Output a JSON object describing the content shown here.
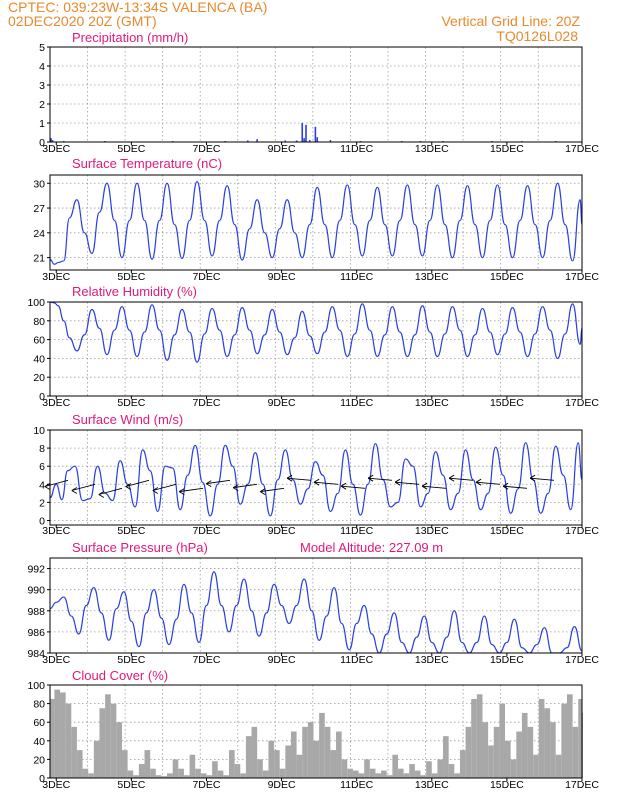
{
  "header": {
    "line1_left": "CPTEC:   039:23W-13:34S   VALENCA (BA)",
    "line2_left": "02DEC2020 20Z (GMT)",
    "line1_right": "Vertical Grid Line: 20Z",
    "line2_right": "TQ0126L028"
  },
  "x_axis": {
    "tick_labels": [
      "3DEC",
      "5DEC",
      "7DEC",
      "9DEC",
      "11DEC",
      "13DEC",
      "15DEC",
      "17DEC"
    ],
    "tick_days": [
      3,
      5,
      7,
      9,
      11,
      13,
      15,
      17
    ],
    "start_day": 2.833,
    "end_day": 17.0
  },
  "colors": {
    "series": "#2a3fe0",
    "cloud": "#a8a8a8",
    "title": "#e0197c",
    "header": "#e8892b"
  },
  "model_altitude": "Model Altitude: 227.09  m",
  "chart_data": [
    {
      "id": "precip",
      "type": "bar",
      "title": "Precipitation (mm/h)",
      "ylim": [
        0,
        5
      ],
      "yticks": [
        0,
        1,
        2,
        3,
        4,
        5
      ],
      "grid": true,
      "x": [
        2.86,
        2.9,
        3.2,
        4.3,
        6.1,
        7.5,
        8.1,
        8.35,
        9.1,
        9.4,
        9.55,
        9.6,
        9.65,
        9.75,
        9.9,
        9.95,
        10.3,
        11.1,
        12.2,
        12.7,
        13.3,
        14.6,
        15.4,
        16.3
      ],
      "values": [
        0.2,
        0.1,
        0.05,
        0.05,
        0.05,
        0.05,
        0.08,
        0.15,
        0.08,
        0.08,
        1.0,
        0.2,
        0.9,
        0.1,
        0.8,
        0.25,
        0.1,
        0.05,
        0.05,
        0.05,
        0.05,
        0.05,
        0.05,
        0.05
      ]
    },
    {
      "id": "temp",
      "type": "line",
      "title": "Surface Temperature (nC)",
      "ylim": [
        19.5,
        31
      ],
      "yticks": [
        21,
        24,
        27,
        30
      ],
      "grid": true,
      "x": [
        2.83,
        2.95,
        3.05,
        3.2,
        3.35,
        3.55,
        3.75,
        3.95,
        4.15,
        4.35,
        4.55,
        4.75,
        4.95,
        5.15,
        5.35,
        5.55,
        5.75,
        5.95,
        6.15,
        6.35,
        6.55,
        6.75,
        6.95,
        7.15,
        7.35,
        7.55,
        7.75,
        7.95,
        8.15,
        8.35,
        8.55,
        8.75,
        8.95,
        9.15,
        9.35,
        9.55,
        9.75,
        9.95,
        10.15,
        10.35,
        10.55,
        10.75,
        10.95,
        11.15,
        11.35,
        11.55,
        11.75,
        11.95,
        12.15,
        12.35,
        12.55,
        12.75,
        12.95,
        13.15,
        13.35,
        13.55,
        13.75,
        13.95,
        14.15,
        14.35,
        14.55,
        14.75,
        14.95,
        15.15,
        15.35,
        15.55,
        15.75,
        15.95,
        16.15,
        16.35,
        16.55,
        16.75,
        16.95,
        17.0
      ],
      "values": [
        20.8,
        20.2,
        20.4,
        20.6,
        25.8,
        28.0,
        24.0,
        21.5,
        26.5,
        30.0,
        25.5,
        21.0,
        25.5,
        30.0,
        25.5,
        20.8,
        25.5,
        30.0,
        25.0,
        20.9,
        25.5,
        30.2,
        25.5,
        21.2,
        25.5,
        29.7,
        25.0,
        20.7,
        24.5,
        28.0,
        24.0,
        21.0,
        24.5,
        28.0,
        24.0,
        21.0,
        25.0,
        29.5,
        25.0,
        21.0,
        25.5,
        29.8,
        25.0,
        21.2,
        25.5,
        29.5,
        25.0,
        21.2,
        25.5,
        29.8,
        25.0,
        21.2,
        25.5,
        29.8,
        25.0,
        21.0,
        25.5,
        29.7,
        25.0,
        21.0,
        25.5,
        29.8,
        25.0,
        21.0,
        25.5,
        29.7,
        25.0,
        21.0,
        25.5,
        30.0,
        25.0,
        20.6,
        28.0,
        25.0
      ]
    },
    {
      "id": "rh",
      "type": "line",
      "title": "Relative Humidity (%)",
      "ylim": [
        0,
        100
      ],
      "yticks": [
        0,
        20,
        40,
        60,
        80,
        100
      ],
      "grid": true,
      "x": [
        2.83,
        2.95,
        3.05,
        3.2,
        3.35,
        3.55,
        3.75,
        3.95,
        4.15,
        4.35,
        4.55,
        4.75,
        4.95,
        5.15,
        5.35,
        5.55,
        5.75,
        5.95,
        6.15,
        6.35,
        6.55,
        6.75,
        6.95,
        7.15,
        7.35,
        7.55,
        7.75,
        7.95,
        8.15,
        8.35,
        8.55,
        8.75,
        8.95,
        9.15,
        9.35,
        9.55,
        9.75,
        9.95,
        10.15,
        10.35,
        10.55,
        10.75,
        10.95,
        11.15,
        11.35,
        11.55,
        11.75,
        11.95,
        12.15,
        12.35,
        12.55,
        12.75,
        12.95,
        13.15,
        13.35,
        13.55,
        13.75,
        13.95,
        14.15,
        14.35,
        14.55,
        14.75,
        14.95,
        15.15,
        15.35,
        15.55,
        15.75,
        15.95,
        16.15,
        16.35,
        16.55,
        16.75,
        16.95,
        17.0
      ],
      "values": [
        100,
        99,
        96,
        80,
        62,
        48,
        65,
        92,
        72,
        44,
        70,
        95,
        70,
        42,
        68,
        97,
        70,
        38,
        65,
        92,
        68,
        36,
        66,
        93,
        70,
        42,
        65,
        94,
        70,
        45,
        65,
        92,
        68,
        44,
        62,
        90,
        64,
        45,
        68,
        95,
        70,
        42,
        66,
        98,
        70,
        42,
        65,
        95,
        68,
        42,
        65,
        96,
        68,
        42,
        66,
        95,
        70,
        42,
        65,
        93,
        68,
        44,
        66,
        94,
        68,
        42,
        66,
        95,
        70,
        40,
        66,
        98,
        55,
        72
      ]
    },
    {
      "id": "wind",
      "type": "line",
      "title": "Surface Wind (m/s)",
      "ylim": [
        -0.5,
        10
      ],
      "yticks": [
        0,
        2,
        4,
        6,
        8,
        10
      ],
      "grid": true,
      "x": [
        2.83,
        3.0,
        3.15,
        3.3,
        3.5,
        3.7,
        3.9,
        4.1,
        4.3,
        4.5,
        4.7,
        4.9,
        5.1,
        5.3,
        5.5,
        5.7,
        5.9,
        6.1,
        6.3,
        6.5,
        6.7,
        6.9,
        7.1,
        7.3,
        7.5,
        7.7,
        7.9,
        8.1,
        8.3,
        8.5,
        8.7,
        8.9,
        9.1,
        9.3,
        9.5,
        9.7,
        9.9,
        10.1,
        10.3,
        10.5,
        10.7,
        10.9,
        11.1,
        11.3,
        11.5,
        11.7,
        11.9,
        12.1,
        12.3,
        12.5,
        12.7,
        12.9,
        13.1,
        13.3,
        13.5,
        13.7,
        13.9,
        14.1,
        14.3,
        14.5,
        14.7,
        14.9,
        15.1,
        15.3,
        15.5,
        15.7,
        15.9,
        16.1,
        16.3,
        16.5,
        16.7,
        16.9,
        17.0
      ],
      "values": [
        2.5,
        4.0,
        2.3,
        5.5,
        6.0,
        2.2,
        2.4,
        6.0,
        3.0,
        2.2,
        6.6,
        4.0,
        1.5,
        7.8,
        5.5,
        1.0,
        6.0,
        5.8,
        1.2,
        5.0,
        8.3,
        4.2,
        0.5,
        4.0,
        8.3,
        6.0,
        1.8,
        4.0,
        7.5,
        4.0,
        0.5,
        4.5,
        7.8,
        4.5,
        1.8,
        3.5,
        6.5,
        5.0,
        1.0,
        3.0,
        7.8,
        4.0,
        0.6,
        4.0,
        8.5,
        4.5,
        1.5,
        2.0,
        6.8,
        6.0,
        1.5,
        3.0,
        7.6,
        5.0,
        1.2,
        3.0,
        7.8,
        4.5,
        1.2,
        3.0,
        8.1,
        5.0,
        0.8,
        3.5,
        8.6,
        4.5,
        0.8,
        3.0,
        8.2,
        5.0,
        1.2,
        8.6,
        4.5
      ]
    },
    {
      "id": "pressure",
      "type": "line",
      "title": "Surface Pressure (hPa)",
      "ylim": [
        984,
        993
      ],
      "yticks": [
        984,
        986,
        988,
        990,
        992
      ],
      "grid": true,
      "x": [
        2.83,
        3.0,
        3.2,
        3.4,
        3.6,
        3.8,
        4.0,
        4.2,
        4.4,
        4.6,
        4.8,
        5.0,
        5.2,
        5.4,
        5.6,
        5.8,
        6.0,
        6.2,
        6.4,
        6.6,
        6.8,
        7.0,
        7.2,
        7.4,
        7.6,
        7.8,
        8.0,
        8.2,
        8.4,
        8.6,
        8.8,
        9.0,
        9.2,
        9.4,
        9.6,
        9.8,
        10.0,
        10.2,
        10.4,
        10.6,
        10.8,
        11.0,
        11.2,
        11.4,
        11.6,
        11.8,
        12.0,
        12.2,
        12.4,
        12.6,
        12.8,
        13.0,
        13.2,
        13.4,
        13.6,
        13.8,
        14.0,
        14.2,
        14.4,
        14.6,
        14.8,
        15.0,
        15.2,
        15.4,
        15.6,
        15.8,
        16.0,
        16.2,
        16.4,
        16.6,
        16.8,
        17.0
      ],
      "values": [
        988.2,
        988.8,
        989.3,
        987.5,
        985.8,
        988.5,
        990.2,
        987.8,
        985.2,
        988.2,
        989.8,
        987.0,
        984.6,
        987.8,
        990.0,
        987.3,
        984.8,
        987.2,
        990.5,
        987.8,
        985.0,
        988.5,
        991.7,
        988.5,
        986.0,
        988.5,
        991.0,
        988.0,
        985.6,
        987.8,
        990.5,
        988.5,
        986.8,
        988.5,
        991.0,
        988.0,
        985.2,
        987.5,
        990.2,
        986.8,
        984.3,
        986.8,
        988.5,
        985.8,
        983.5,
        985.8,
        987.8,
        985.0,
        983.5,
        985.5,
        987.5,
        985.0,
        983.2,
        985.5,
        988.0,
        985.0,
        983.0,
        985.0,
        987.5,
        984.8,
        982.8,
        985.0,
        987.2,
        984.5,
        982.8,
        984.8,
        986.4,
        984.0,
        982.8,
        984.5,
        986.5,
        984.2
      ]
    },
    {
      "id": "cloud",
      "type": "area",
      "title": "Cloud Cover (%)",
      "ylim": [
        0,
        100
      ],
      "yticks": [
        0,
        20,
        40,
        60,
        80,
        100
      ],
      "grid": true,
      "x": [
        2.83,
        2.95,
        3.1,
        3.25,
        3.4,
        3.55,
        3.7,
        3.85,
        4.0,
        4.15,
        4.3,
        4.45,
        4.6,
        4.75,
        4.9,
        5.05,
        5.2,
        5.35,
        5.5,
        5.65,
        5.8,
        5.95,
        6.1,
        6.25,
        6.4,
        6.55,
        6.7,
        6.85,
        7.0,
        7.15,
        7.3,
        7.45,
        7.6,
        7.75,
        7.9,
        8.05,
        8.2,
        8.35,
        8.5,
        8.65,
        8.8,
        8.95,
        9.1,
        9.25,
        9.4,
        9.55,
        9.7,
        9.85,
        10.0,
        10.15,
        10.3,
        10.45,
        10.6,
        10.75,
        10.9,
        11.05,
        11.2,
        11.35,
        11.5,
        11.65,
        11.8,
        11.95,
        12.1,
        12.25,
        12.4,
        12.55,
        12.7,
        12.85,
        13.0,
        13.15,
        13.3,
        13.45,
        13.6,
        13.75,
        13.9,
        14.05,
        14.2,
        14.35,
        14.5,
        14.65,
        14.8,
        14.95,
        15.1,
        15.25,
        15.4,
        15.55,
        15.7,
        15.85,
        16.0,
        16.15,
        16.3,
        16.45,
        16.6,
        16.75,
        16.9,
        17.0
      ],
      "values": [
        85,
        95,
        92,
        80,
        55,
        30,
        10,
        5,
        40,
        75,
        90,
        80,
        60,
        30,
        8,
        3,
        15,
        30,
        10,
        3,
        2,
        5,
        20,
        10,
        3,
        25,
        10,
        5,
        3,
        18,
        8,
        3,
        30,
        15,
        5,
        45,
        55,
        20,
        8,
        40,
        30,
        10,
        35,
        50,
        25,
        55,
        60,
        40,
        70,
        55,
        30,
        50,
        20,
        10,
        8,
        5,
        20,
        10,
        5,
        8,
        3,
        25,
        10,
        5,
        15,
        8,
        3,
        18,
        5,
        20,
        45,
        15,
        5,
        30,
        55,
        85,
        90,
        60,
        35,
        55,
        80,
        40,
        20,
        50,
        70,
        55,
        25,
        85,
        75,
        60,
        25,
        80,
        90,
        55,
        85,
        70
      ]
    }
  ]
}
